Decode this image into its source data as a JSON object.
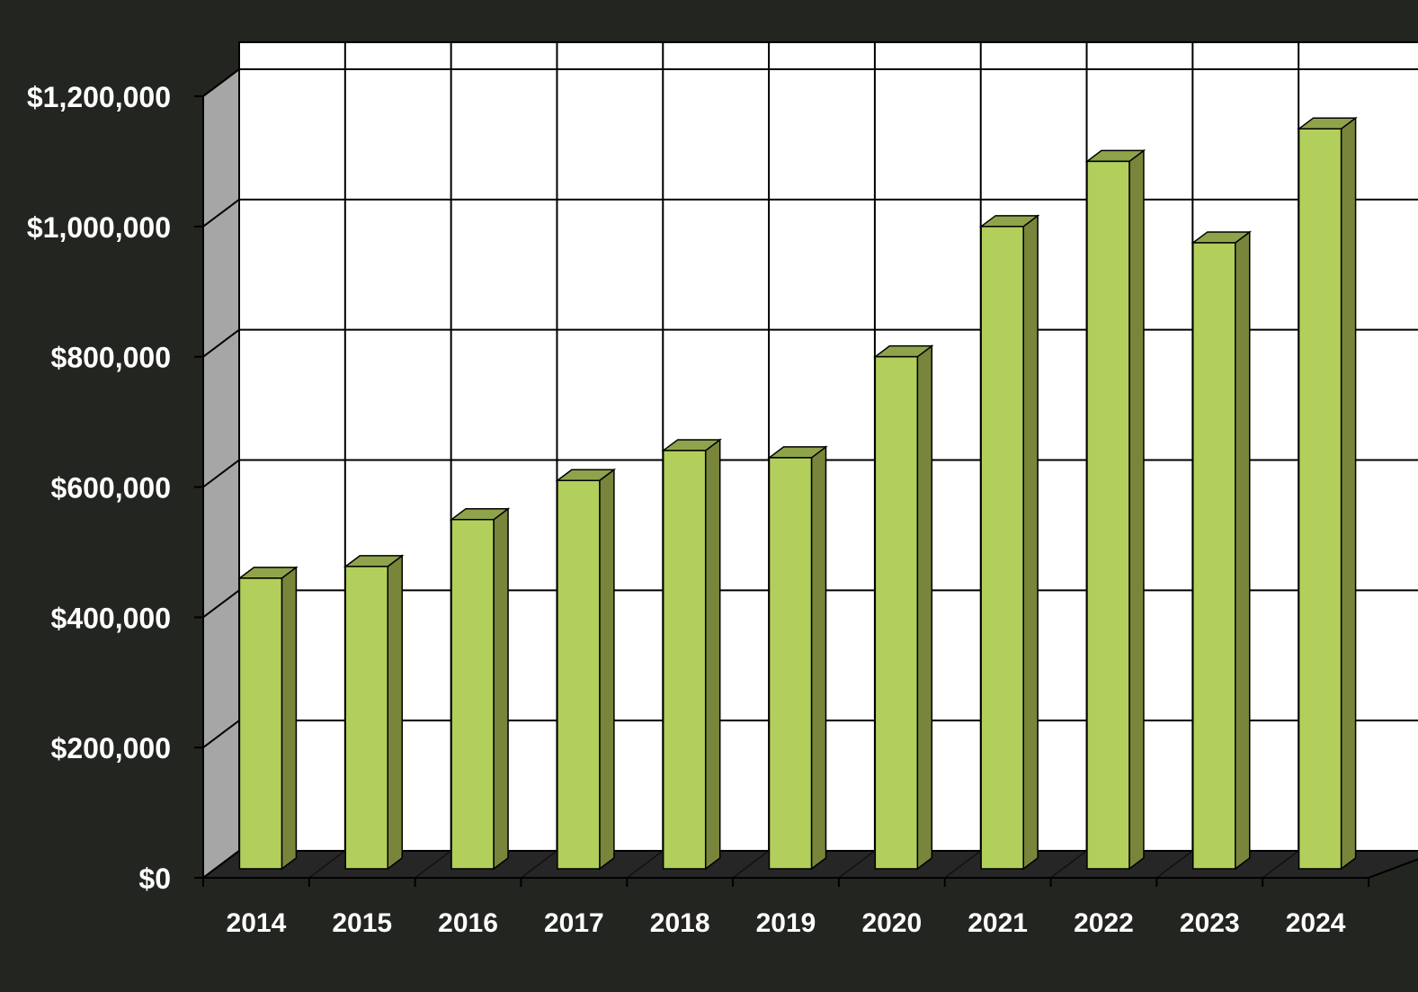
{
  "chart_data": {
    "type": "bar",
    "title": "",
    "xlabel": "",
    "ylabel": "",
    "categories": [
      "2014",
      "2015",
      "2016",
      "2017",
      "2018",
      "2019",
      "2020",
      "2021",
      "2022",
      "2023",
      "2024"
    ],
    "values": [
      460000,
      478000,
      550000,
      610000,
      656000,
      645000,
      800000,
      1000000,
      1100000,
      975000,
      1150000
    ],
    "ylim": [
      0,
      1200000
    ],
    "yticks": [
      0,
      200000,
      400000,
      600000,
      800000,
      1000000,
      1200000
    ],
    "ytick_labels": [
      "$0",
      "$200,000",
      "$400,000",
      "$600,000",
      "$800,000",
      "$1,000,000",
      "$1,200,000"
    ],
    "grid": true,
    "style": "3d-column",
    "colors": {
      "background": "#232521",
      "plot_area": "#ffffff",
      "side_wall": "#a6a6a6",
      "floor": "#262626",
      "bar_front": "#b2cf5c",
      "bar_side": "#78853b",
      "bar_top": "#8fa34b",
      "gridline": "#000000"
    }
  }
}
